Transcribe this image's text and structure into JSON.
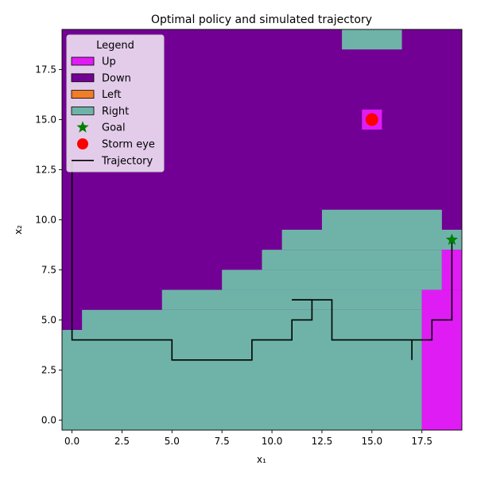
{
  "chart_data": {
    "type": "heatmap",
    "title": "Optimal policy and simulated trajectory",
    "xlabel": "x₁",
    "ylabel": "x₂",
    "xlim": [
      -0.5,
      19.5
    ],
    "ylim": [
      -0.5,
      19.5
    ],
    "xticks": [
      "0.0",
      "2.5",
      "5.0",
      "7.5",
      "10.0",
      "12.5",
      "15.0",
      "17.5"
    ],
    "yticks": [
      "0.0",
      "2.5",
      "5.0",
      "7.5",
      "10.0",
      "12.5",
      "15.0",
      "17.5"
    ],
    "xtick_values": [
      0,
      2.5,
      5,
      7.5,
      10,
      12.5,
      15,
      17.5
    ],
    "ytick_values": [
      0,
      2.5,
      5,
      7.5,
      10,
      12.5,
      15,
      17.5
    ],
    "actions": [
      {
        "name": "Up",
        "color": "#e01cf4"
      },
      {
        "name": "Down",
        "color": "#730094"
      },
      {
        "name": "Left",
        "color": "#f07d28"
      },
      {
        "name": "Right",
        "color": "#6fb3a8"
      }
    ],
    "policy_regions": [
      {
        "action": "Right",
        "x0": -0.5,
        "x1": 17.5,
        "y0": -0.5,
        "y1": 4.5
      },
      {
        "action": "Right",
        "x0": 0.5,
        "x1": 17.5,
        "y0": 4.5,
        "y1": 5.5
      },
      {
        "action": "Right",
        "x0": 4.5,
        "x1": 17.5,
        "y0": 5.5,
        "y1": 6.5
      },
      {
        "action": "Right",
        "x0": 7.5,
        "x1": 18.5,
        "y0": 6.5,
        "y1": 7.5
      },
      {
        "action": "Right",
        "x0": 9.5,
        "x1": 18.5,
        "y0": 7.5,
        "y1": 8.5
      },
      {
        "action": "Right",
        "x0": 10.5,
        "x1": 19.5,
        "y0": 8.5,
        "y1": 9.5
      },
      {
        "action": "Right",
        "x0": 12.5,
        "x1": 18.5,
        "y0": 9.5,
        "y1": 10.5
      },
      {
        "action": "Right",
        "x0": 13.5,
        "x1": 16.5,
        "y0": 18.5,
        "y1": 19.5
      },
      {
        "action": "Up",
        "x0": 17.5,
        "x1": 19.5,
        "y0": -0.5,
        "y1": 6.5
      },
      {
        "action": "Up",
        "x0": 18.5,
        "x1": 19.5,
        "y0": 6.5,
        "y1": 8.5
      },
      {
        "action": "Up",
        "x0": 14.5,
        "x1": 15.5,
        "y0": 14.5,
        "y1": 15.5
      }
    ],
    "default_action": "Down",
    "goal": {
      "x": 19,
      "y": 9,
      "color": "#008000"
    },
    "storm_eye": {
      "x": 15,
      "y": 15,
      "color": "#ff0000"
    },
    "trajectory": {
      "color": "#000000",
      "x": [
        17,
        17,
        18,
        18,
        19,
        19
      ],
      "y": [
        3,
        4,
        4,
        5,
        5,
        9
      ],
      "segments": [
        [
          [
            0,
            13
          ],
          [
            0,
            4
          ],
          [
            5,
            4
          ],
          [
            5,
            3
          ],
          [
            9,
            3
          ],
          [
            9,
            4
          ],
          [
            11,
            4
          ],
          [
            11,
            5
          ],
          [
            12,
            5
          ],
          [
            12,
            6
          ],
          [
            11,
            6
          ]
        ],
        [
          [
            11,
            6
          ],
          [
            13,
            6
          ],
          [
            13,
            4
          ],
          [
            18,
            4
          ],
          [
            18,
            5
          ],
          [
            19,
            5
          ],
          [
            19,
            9
          ]
        ],
        [
          [
            17,
            3
          ],
          [
            17,
            4
          ]
        ]
      ]
    },
    "legend": {
      "title": "Legend",
      "placement": "top-left",
      "entries": [
        "Up",
        "Down",
        "Left",
        "Right",
        "Goal",
        "Storm eye",
        "Trajectory"
      ]
    }
  }
}
